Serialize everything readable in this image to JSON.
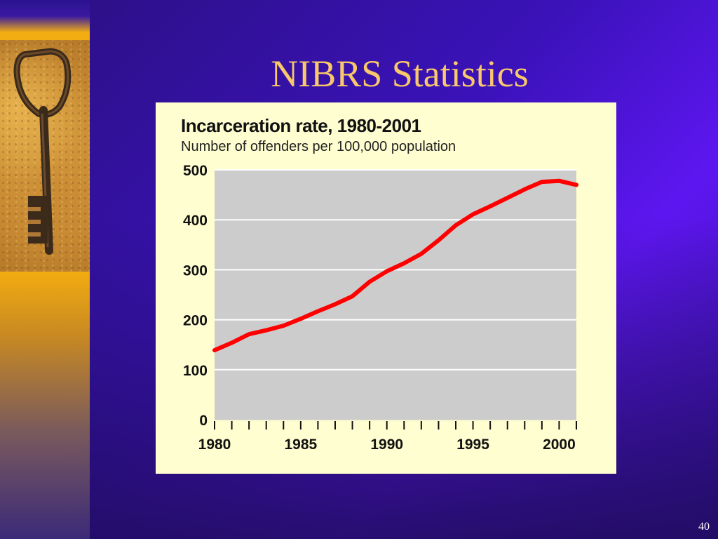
{
  "slide": {
    "title": "NIBRS Statistics",
    "page_number": "40"
  },
  "left_panel": {
    "image_subject": "old-key-on-sand"
  },
  "colors": {
    "title": "#f9c86a",
    "plot_bg": "#cccccc",
    "line": "#ff0000",
    "panel_bg": "#fffed1"
  },
  "chart_data": {
    "type": "line",
    "title": "Incarceration rate, 1980-2001",
    "subtitle": "Number of offenders per 100,000 population",
    "xlabel": "",
    "ylabel": "",
    "x_ticks": [
      "1980",
      "1985",
      "1990",
      "1995",
      "2000"
    ],
    "y_ticks": [
      "0",
      "100",
      "200",
      "300",
      "400",
      "500"
    ],
    "xlim": [
      1980,
      2001
    ],
    "ylim": [
      0,
      500
    ],
    "grid": true,
    "series": [
      {
        "x": [
          1980,
          1981,
          1982,
          1983,
          1984,
          1985,
          1986,
          1987,
          1988,
          1989,
          1990,
          1991,
          1992,
          1993,
          1994,
          1995,
          1996,
          1997,
          1998,
          1999,
          2000,
          2001
        ],
        "y": [
          139,
          154,
          171,
          179,
          188,
          202,
          217,
          231,
          247,
          276,
          297,
          313,
          332,
          359,
          389,
          411,
          427,
          444,
          461,
          476,
          478,
          470
        ]
      }
    ]
  }
}
